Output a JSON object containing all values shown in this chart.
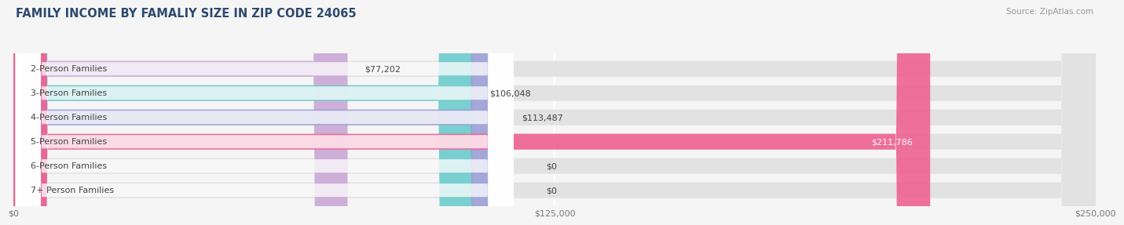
{
  "title": "FAMILY INCOME BY FAMALIY SIZE IN ZIP CODE 24065",
  "source": "Source: ZipAtlas.com",
  "categories": [
    "2-Person Families",
    "3-Person Families",
    "4-Person Families",
    "5-Person Families",
    "6-Person Families",
    "7+ Person Families"
  ],
  "values": [
    77202,
    106048,
    113487,
    211786,
    0,
    0
  ],
  "bar_colors": [
    "#c9a8d4",
    "#6dcbcc",
    "#9b9fd4",
    "#f06292",
    "#f5c89a",
    "#f4a9a0"
  ],
  "bar_bg_color": "#e2e2e2",
  "value_labels": [
    "$77,202",
    "$106,048",
    "$113,487",
    "$211,786",
    "$0",
    "$0"
  ],
  "xlim": [
    0,
    250000
  ],
  "xtick_vals": [
    0,
    125000,
    250000
  ],
  "xtick_labels": [
    "$0",
    "$125,000",
    "$250,000"
  ],
  "title_color": "#2d4a6e",
  "source_color": "#999999",
  "background_color": "#f5f5f5",
  "bar_height": 0.65,
  "label_fontsize": 8.0,
  "title_fontsize": 10.5,
  "source_fontsize": 7.5
}
